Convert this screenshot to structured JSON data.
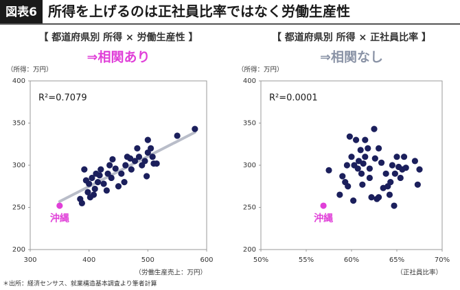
{
  "header": {
    "badge": "図表6",
    "title": "所得を上げるのは正社員比率ではなく労働生産性"
  },
  "chart_data": [
    {
      "type": "scatter",
      "heading": "【 都道府県別 所得 × 労働生産性 】",
      "verdict": "⇒相関あり",
      "verdict_color": "#e03fd8",
      "y_label": "（所得：万円）",
      "x_label": "（労働生産売上：万円）",
      "annotation": "R²=0.7079",
      "xlim": [
        300,
        600
      ],
      "ylim": [
        200,
        400
      ],
      "xticks": [
        300,
        400,
        500,
        600
      ],
      "yticks": [
        200,
        250,
        300,
        350,
        400
      ],
      "trendline": {
        "x": [
          350,
          580
        ],
        "y": [
          257,
          339
        ]
      },
      "trend_color": "#b9bdc9",
      "series": [
        {
          "color": "#1b1f5c",
          "x": [
            385,
            388,
            392,
            395,
            398,
            400,
            402,
            405,
            408,
            410,
            412,
            415,
            418,
            420,
            425,
            430,
            432,
            435,
            438,
            440,
            445,
            450,
            455,
            460,
            462,
            465,
            470,
            472,
            478,
            482,
            485,
            490,
            495,
            498,
            500,
            500,
            505,
            508,
            510,
            515,
            550,
            580
          ],
          "y": [
            260,
            255,
            295,
            282,
            268,
            278,
            262,
            285,
            265,
            272,
            290,
            280,
            288,
            295,
            278,
            270,
            290,
            300,
            285,
            307,
            296,
            275,
            290,
            280,
            300,
            310,
            308,
            295,
            305,
            320,
            310,
            300,
            305,
            287,
            315,
            330,
            320,
            310,
            302,
            302,
            335,
            343
          ]
        },
        {
          "name": "沖縄",
          "color": "#e03fd8",
          "x": [
            350
          ],
          "y": [
            252
          ]
        }
      ]
    },
    {
      "type": "scatter",
      "heading": "【 都道府県別 所得 × 正社員比率 】",
      "verdict": "⇒相関なし",
      "verdict_color": "#8a93a6",
      "y_label": "（所得：万円）",
      "x_label": "（正社員比率）",
      "annotation": "R²=0.0001",
      "xlim": [
        50,
        70
      ],
      "ylim": [
        200,
        400
      ],
      "xticks": [
        {
          "value": 50,
          "label": "50%"
        },
        {
          "value": 55,
          "label": "55%"
        },
        {
          "value": 60,
          "label": "60%"
        },
        {
          "value": 65,
          "label": "65%"
        },
        {
          "value": 70,
          "label": "70%"
        }
      ],
      "yticks": [
        200,
        250,
        300,
        350,
        400
      ],
      "series": [
        {
          "color": "#1b1f5c",
          "x": [
            57.5,
            58.7,
            59.0,
            59.3,
            59.6,
            59.8,
            60.0,
            60.2,
            60.3,
            60.5,
            60.8,
            61.0,
            61.1,
            61.2,
            61.3,
            61.5,
            61.8,
            62.0,
            62.2,
            62.5,
            62.6,
            62.8,
            63.0,
            63.3,
            63.5,
            63.8,
            64.0,
            64.2,
            64.3,
            64.5,
            64.7,
            64.8,
            65.0,
            65.2,
            65.4,
            65.6,
            65.8,
            66.0,
            67.0,
            67.3,
            67.5,
            62.0,
            61.5,
            59.5,
            63.0,
            60.7
          ],
          "y": [
            294,
            265,
            287,
            280,
            275,
            334,
            310,
            258,
            300,
            330,
            305,
            318,
            290,
            277,
            302,
            310,
            320,
            296,
            262,
            343,
            308,
            260,
            320,
            303,
            273,
            290,
            275,
            265,
            280,
            300,
            252,
            290,
            310,
            298,
            285,
            295,
            310,
            297,
            305,
            277,
            295,
            285,
            330,
            300,
            262,
            296
          ]
        },
        {
          "name": "沖縄",
          "color": "#e03fd8",
          "x": [
            56.9
          ],
          "y": [
            252
          ]
        }
      ]
    }
  ],
  "footnote": "＊出所：経済センサス、就業構造基本調査より筆者計算"
}
